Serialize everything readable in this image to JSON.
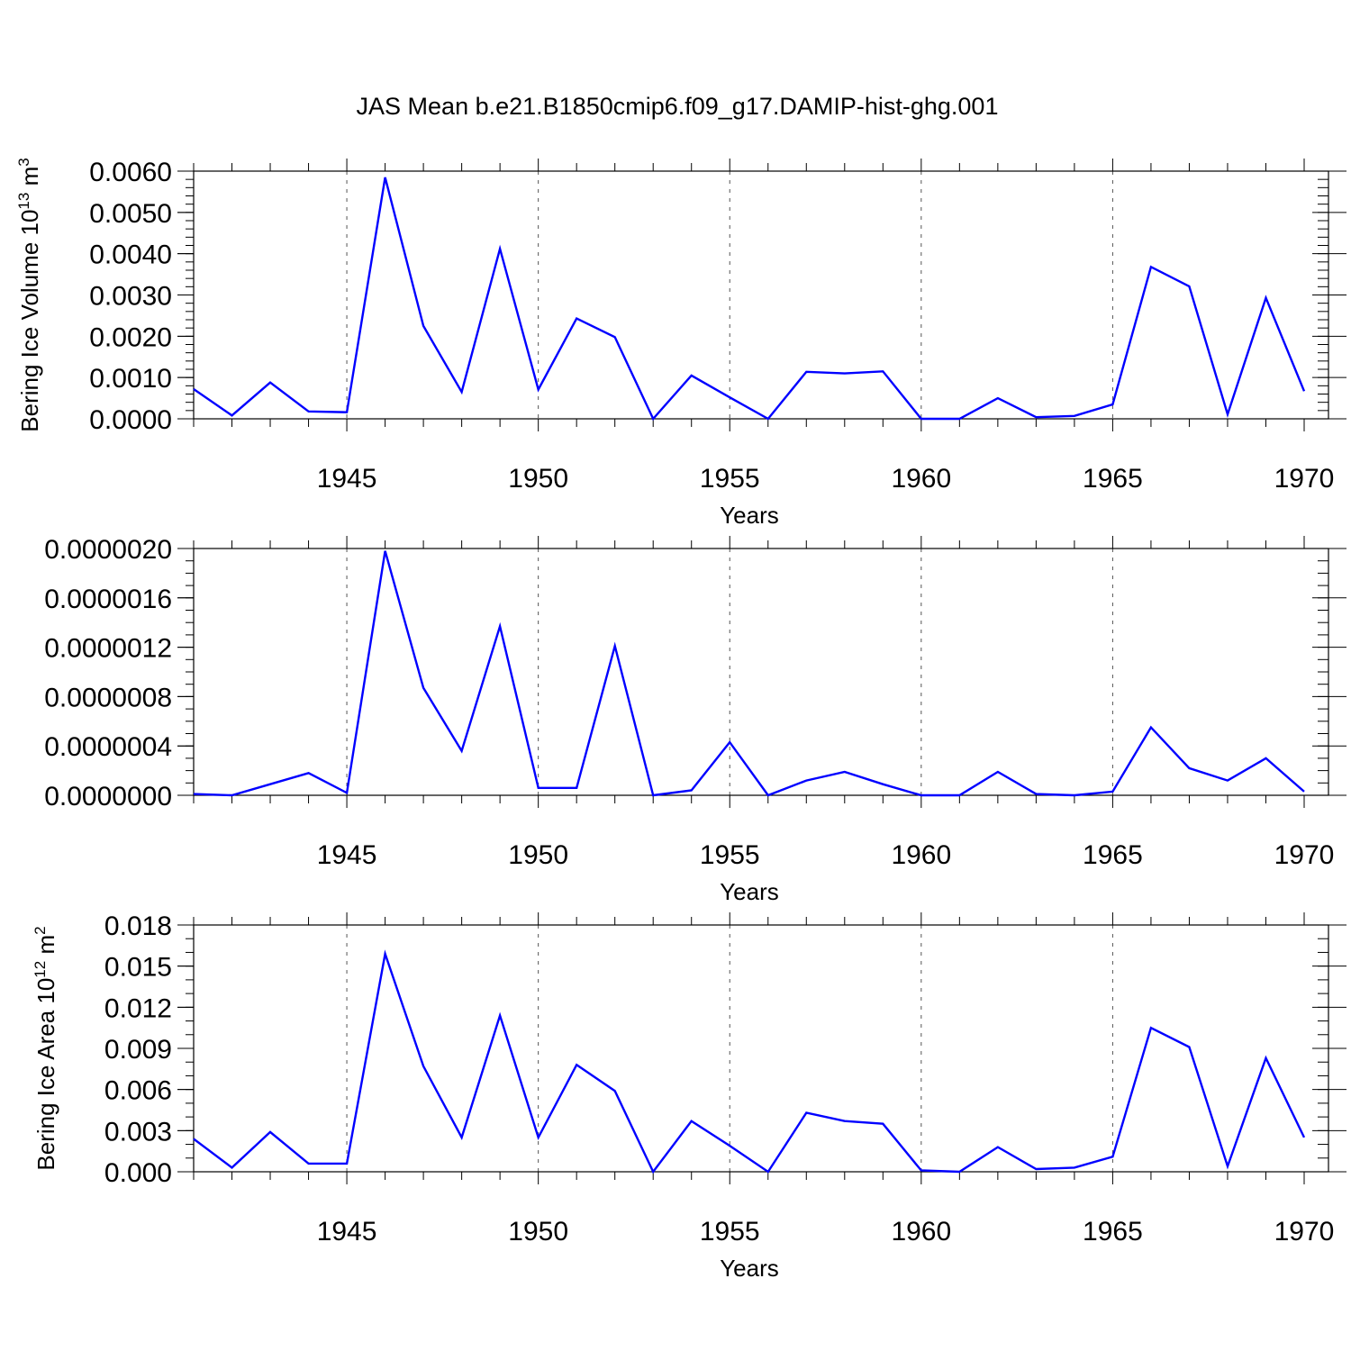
{
  "chart_data": [
    {
      "type": "line",
      "title": "JAS Mean b.e21.B1850cmip6.f09_g17.DAMIP-hist-ghg.001",
      "ylabel": "Bering Ice Volume 10",
      "ylabel_sup": "13",
      "ylabel_unit": " m",
      "ylabel_unit_sup": "3",
      "xlabel": "Years",
      "xlim": [
        1941,
        1970
      ],
      "ylim": [
        0,
        0.006
      ],
      "x_ticks": [
        1945,
        1950,
        1955,
        1960,
        1965,
        1970
      ],
      "x_tick_labels": [
        "1945",
        "1950",
        "1955",
        "1960",
        "1965",
        "1970"
      ],
      "y_ticks": [
        0,
        0.001,
        0.002,
        0.003,
        0.004,
        0.005,
        0.006
      ],
      "y_tick_labels": [
        "0.0000",
        "0.0010",
        "0.0020",
        "0.0030",
        "0.0040",
        "0.0050",
        "0.0060"
      ],
      "y_minor_step": 0.0002,
      "grid": "vertical dashed at major x ticks",
      "x": [
        1941,
        1942,
        1943,
        1944,
        1945,
        1946,
        1947,
        1948,
        1949,
        1950,
        1951,
        1952,
        1953,
        1954,
        1955,
        1956,
        1957,
        1958,
        1959,
        1960,
        1961,
        1962,
        1963,
        1964,
        1965,
        1966,
        1967,
        1968,
        1969,
        1970
      ],
      "values": [
        0.00072,
        8e-05,
        0.00088,
        0.00018,
        0.00016,
        0.00585,
        0.00225,
        0.00065,
        0.00412,
        0.00071,
        0.00243,
        0.00198,
        0.0,
        0.00105,
        0.00052,
        0.0,
        0.00114,
        0.0011,
        0.00115,
        0.0,
        0.0,
        0.0005,
        4e-05,
        7e-05,
        0.00035,
        0.00368,
        0.00321,
        0.00011,
        0.00293,
        0.00067
      ],
      "color": "#0000ff"
    },
    {
      "type": "line",
      "title": "",
      "ylabel": "",
      "xlabel": "Years",
      "xlim": [
        1941,
        1970
      ],
      "ylim": [
        0,
        2e-06
      ],
      "x_ticks": [
        1945,
        1950,
        1955,
        1960,
        1965,
        1970
      ],
      "x_tick_labels": [
        "1945",
        "1950",
        "1955",
        "1960",
        "1965",
        "1970"
      ],
      "y_ticks": [
        0,
        4e-07,
        8e-07,
        1.2e-06,
        1.6e-06,
        2e-06
      ],
      "y_tick_labels": [
        "0.0000000",
        "0.0000004",
        "0.0000008",
        "0.0000012",
        "0.0000016",
        "0.0000020"
      ],
      "y_minor_step": 1e-07,
      "grid": "vertical dashed at major x ticks",
      "x": [
        1941,
        1942,
        1943,
        1944,
        1945,
        1946,
        1947,
        1948,
        1949,
        1950,
        1951,
        1952,
        1953,
        1954,
        1955,
        1956,
        1957,
        1958,
        1959,
        1960,
        1961,
        1962,
        1963,
        1964,
        1965,
        1966,
        1967,
        1968,
        1969,
        1970
      ],
      "values": [
        1e-08,
        0.0,
        9e-08,
        1.8e-07,
        2e-08,
        1.98e-06,
        8.7e-07,
        3.6e-07,
        1.37e-06,
        6e-08,
        6e-08,
        1.21e-06,
        0.0,
        4e-08,
        4.3e-07,
        0.0,
        1.2e-07,
        1.9e-07,
        9e-08,
        0.0,
        0.0,
        1.9e-07,
        1e-08,
        0.0,
        3e-08,
        5.5e-07,
        2.2e-07,
        1.2e-07,
        3e-07,
        3e-08
      ],
      "color": "#0000ff"
    },
    {
      "type": "line",
      "title": "",
      "ylabel": "Bering Ice Area 10",
      "ylabel_sup": "12",
      "ylabel_unit": " m",
      "ylabel_unit_sup": "2",
      "xlabel": "Years",
      "xlim": [
        1941,
        1970
      ],
      "ylim": [
        0,
        0.018
      ],
      "x_ticks": [
        1945,
        1950,
        1955,
        1960,
        1965,
        1970
      ],
      "x_tick_labels": [
        "1945",
        "1950",
        "1955",
        "1960",
        "1965",
        "1970"
      ],
      "y_ticks": [
        0,
        0.003,
        0.006,
        0.009,
        0.012,
        0.015,
        0.018
      ],
      "y_tick_labels": [
        "0.000",
        "0.003",
        "0.006",
        "0.009",
        "0.012",
        "0.015",
        "0.018"
      ],
      "y_minor_step": 0.001,
      "grid": "vertical dashed at major x ticks",
      "x": [
        1941,
        1942,
        1943,
        1944,
        1945,
        1946,
        1947,
        1948,
        1949,
        1950,
        1951,
        1952,
        1953,
        1954,
        1955,
        1956,
        1957,
        1958,
        1959,
        1960,
        1961,
        1962,
        1963,
        1964,
        1965,
        1966,
        1967,
        1968,
        1969,
        1970
      ],
      "values": [
        0.0024,
        0.0003,
        0.0029,
        0.0006,
        0.0006,
        0.0159,
        0.0077,
        0.0025,
        0.0114,
        0.0025,
        0.0078,
        0.0059,
        0.0,
        0.0037,
        0.0019,
        0.0,
        0.0043,
        0.0037,
        0.0035,
        0.0001,
        0.0,
        0.0018,
        0.0002,
        0.0003,
        0.0011,
        0.0105,
        0.0091,
        0.0004,
        0.0083,
        0.0025
      ],
      "color": "#0000ff"
    }
  ]
}
